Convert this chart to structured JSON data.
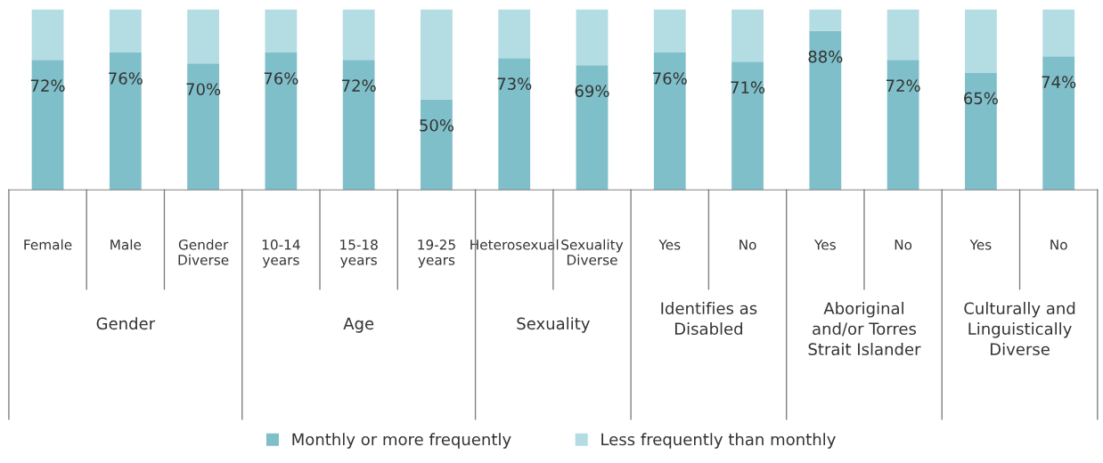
{
  "chart_data": [
    {
      "type": "bar",
      "stacked": true,
      "xlabel": "Gender",
      "categories": [
        "Female",
        "Male",
        "Gender Diverse"
      ],
      "ylim": [
        0,
        100
      ],
      "tick_labels": "x",
      "legend": "bottom",
      "series": [
        {
          "name": "Monthly or more frequently",
          "color": "#7fbfc9",
          "values": [
            72,
            76,
            70
          ],
          "value_labels": [
            "72%",
            "76%",
            "70%"
          ]
        },
        {
          "name": "Less frequently than monthly",
          "color": "#b3dce3",
          "values": [
            28,
            24,
            30
          ]
        }
      ]
    },
    {
      "type": "bar",
      "stacked": true,
      "xlabel": "Age",
      "categories": [
        "10-14 years",
        "15-18 years",
        "19-25 years"
      ],
      "ylim": [
        0,
        100
      ],
      "tick_labels": "x",
      "series": [
        {
          "name": "Monthly or more frequently",
          "color": "#7fbfc9",
          "values": [
            76,
            72,
            50
          ],
          "value_labels": [
            "76%",
            "72%",
            "50%"
          ]
        },
        {
          "name": "Less frequently than monthly",
          "color": "#b3dce3",
          "values": [
            24,
            28,
            50
          ]
        }
      ]
    },
    {
      "type": "bar",
      "stacked": true,
      "xlabel": "Sexuality",
      "categories": [
        "Heterosexual",
        "Sexuality Diverse"
      ],
      "ylim": [
        0,
        100
      ],
      "tick_labels": "x",
      "series": [
        {
          "name": "Monthly or more frequently",
          "color": "#7fbfc9",
          "values": [
            73,
            69
          ],
          "value_labels": [
            "73%",
            "69%"
          ]
        },
        {
          "name": "Less frequently than monthly",
          "color": "#b3dce3",
          "values": [
            27,
            31
          ]
        }
      ]
    },
    {
      "type": "bar",
      "stacked": true,
      "xlabel": "Identifies as\nDisabled",
      "categories": [
        "Yes",
        "No"
      ],
      "ylim": [
        0,
        100
      ],
      "tick_labels": "x",
      "series": [
        {
          "name": "Monthly or more frequently",
          "color": "#7fbfc9",
          "values": [
            76,
            71
          ],
          "value_labels": [
            "76%",
            "71%"
          ]
        },
        {
          "name": "Less frequently than monthly",
          "color": "#b3dce3",
          "values": [
            24,
            29
          ]
        }
      ]
    },
    {
      "type": "bar",
      "stacked": true,
      "xlabel": "Aboriginal\nand/or Torres\nStrait Islander",
      "categories": [
        "Yes",
        "No"
      ],
      "ylim": [
        0,
        100
      ],
      "tick_labels": "x",
      "series": [
        {
          "name": "Monthly or more frequently",
          "color": "#7fbfc9",
          "values": [
            88,
            72
          ],
          "value_labels": [
            "88%",
            "72%"
          ]
        },
        {
          "name": "Less frequently than monthly",
          "color": "#b3dce3",
          "values": [
            12,
            28
          ]
        }
      ]
    },
    {
      "type": "bar",
      "stacked": true,
      "xlabel": "Culturally and\nLinguistically\nDiverse",
      "categories": [
        "Yes",
        "No"
      ],
      "ylim": [
        0,
        100
      ],
      "tick_labels": "x",
      "series": [
        {
          "name": "Monthly or more frequently",
          "color": "#7fbfc9",
          "values": [
            65,
            74
          ],
          "value_labels": [
            "65%",
            "74%"
          ]
        },
        {
          "name": "Less frequently than monthly",
          "color": "#b3dce3",
          "values": [
            35,
            26
          ]
        }
      ]
    }
  ]
}
